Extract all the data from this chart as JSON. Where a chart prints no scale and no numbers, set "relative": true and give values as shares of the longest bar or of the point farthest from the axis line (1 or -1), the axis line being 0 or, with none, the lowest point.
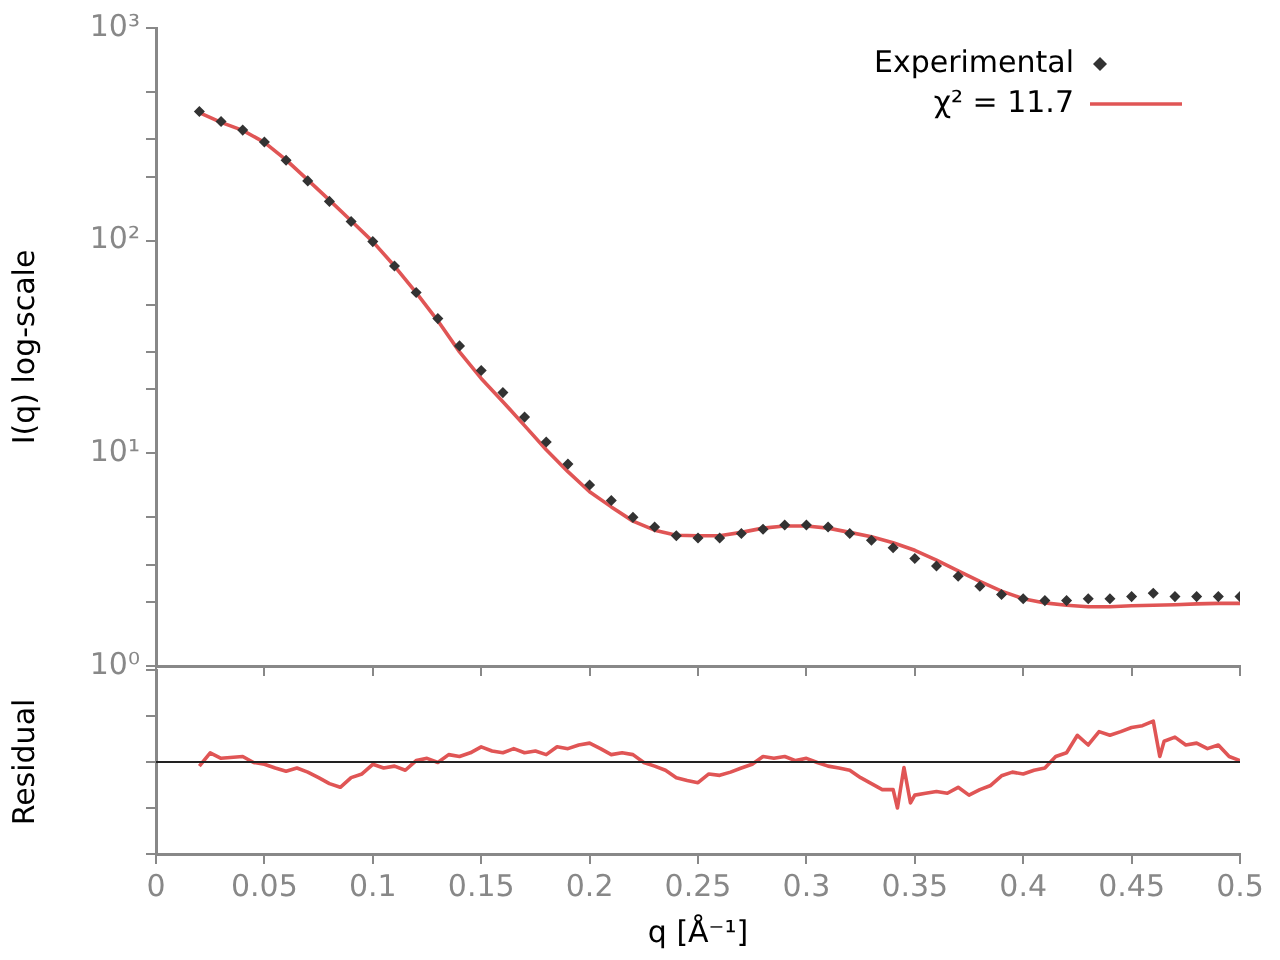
{
  "chart_data": [
    {
      "type": "scatter",
      "ylabel": "I(q) log-scale",
      "log": "y",
      "grid": false,
      "legend": "top right",
      "tick_labels": "y",
      "xlim": [
        0,
        0.5
      ],
      "xticks": [
        0,
        0.05,
        0.1,
        0.15,
        0.2,
        0.25,
        0.3,
        0.35,
        0.4,
        0.45,
        0.5
      ],
      "ylim": [
        1,
        1000
      ],
      "yticks": [
        {
          "value": 1,
          "label": "10⁰"
        },
        {
          "value": 2,
          "label": null
        },
        {
          "value": 3,
          "label": null
        },
        {
          "value": 5,
          "label": null
        },
        {
          "value": 10,
          "label": "10¹"
        },
        {
          "value": 20,
          "label": null
        },
        {
          "value": 30,
          "label": null
        },
        {
          "value": 50,
          "label": null
        },
        {
          "value": 100,
          "label": "10²"
        },
        {
          "value": 200,
          "label": null
        },
        {
          "value": 300,
          "label": null
        },
        {
          "value": 500,
          "label": null
        },
        {
          "value": 1000,
          "label": "10³"
        }
      ],
      "x": [
        0.02,
        0.03,
        0.04,
        0.05,
        0.06,
        0.07,
        0.08,
        0.09,
        0.1,
        0.11,
        0.12,
        0.13,
        0.14,
        0.15,
        0.16,
        0.17,
        0.18,
        0.19,
        0.2,
        0.21,
        0.22,
        0.23,
        0.24,
        0.25,
        0.26,
        0.27,
        0.28,
        0.29,
        0.3,
        0.31,
        0.32,
        0.33,
        0.34,
        0.35,
        0.36,
        0.37,
        0.38,
        0.39,
        0.4,
        0.41,
        0.42,
        0.43,
        0.44,
        0.45,
        0.46,
        0.47,
        0.48,
        0.49,
        0.5
      ],
      "series": [
        {
          "name": "Experimental",
          "type": "scatter",
          "marker": "diamond",
          "color": "#333333",
          "values": [
            405,
            363,
            331,
            291,
            239,
            191,
            153,
            123,
            99,
            76,
            57,
            43,
            32,
            24.5,
            19.3,
            14.8,
            11.3,
            8.9,
            7.1,
            6.0,
            5.0,
            4.5,
            4.1,
            4.0,
            4.0,
            4.2,
            4.4,
            4.6,
            4.6,
            4.5,
            4.2,
            3.9,
            3.6,
            3.2,
            2.95,
            2.64,
            2.37,
            2.17,
            2.07,
            2.03,
            2.03,
            2.07,
            2.07,
            2.12,
            2.2,
            2.12,
            2.12,
            2.12,
            2.12
          ]
        },
        {
          "name": "χ² = 11.7",
          "type": "line",
          "marker": "none",
          "line_style": "solid",
          "color": "#e05555",
          "values": [
            400,
            360,
            330,
            290,
            240,
            193,
            155,
            124,
            99,
            76,
            57,
            42,
            30,
            22.5,
            17.5,
            13.5,
            10.4,
            8.2,
            6.6,
            5.6,
            4.8,
            4.35,
            4.12,
            4.1,
            4.1,
            4.25,
            4.45,
            4.55,
            4.55,
            4.45,
            4.25,
            4.05,
            3.8,
            3.5,
            3.15,
            2.8,
            2.5,
            2.25,
            2.07,
            1.98,
            1.93,
            1.9,
            1.9,
            1.92,
            1.93,
            1.94,
            1.96,
            1.97,
            1.97
          ]
        }
      ]
    },
    {
      "type": "line",
      "ylabel": "Residual",
      "xlabel": "q [Å⁻¹]",
      "relative": true,
      "grid": false,
      "legend": false,
      "marker": "none",
      "line_style": "solid",
      "xlim": [
        0,
        0.5
      ],
      "xticks": [
        0,
        0.05,
        0.1,
        0.15,
        0.2,
        0.25,
        0.3,
        0.35,
        0.4,
        0.45,
        0.5
      ],
      "ref_lines": [
        {
          "axis": "y",
          "value": 0,
          "color": "#222222"
        }
      ],
      "x": [
        0.02,
        0.025,
        0.03,
        0.04,
        0.045,
        0.05,
        0.055,
        0.06,
        0.065,
        0.07,
        0.075,
        0.08,
        0.085,
        0.09,
        0.095,
        0.1,
        0.105,
        0.11,
        0.115,
        0.12,
        0.125,
        0.13,
        0.135,
        0.14,
        0.145,
        0.15,
        0.155,
        0.16,
        0.165,
        0.17,
        0.175,
        0.18,
        0.185,
        0.19,
        0.195,
        0.2,
        0.205,
        0.21,
        0.215,
        0.22,
        0.225,
        0.23,
        0.235,
        0.24,
        0.245,
        0.25,
        0.255,
        0.26,
        0.265,
        0.27,
        0.275,
        0.28,
        0.285,
        0.29,
        0.295,
        0.3,
        0.305,
        0.31,
        0.315,
        0.32,
        0.325,
        0.33,
        0.335,
        0.34,
        0.342,
        0.345,
        0.348,
        0.35,
        0.355,
        0.36,
        0.365,
        0.37,
        0.375,
        0.38,
        0.385,
        0.39,
        0.395,
        0.4,
        0.405,
        0.41,
        0.415,
        0.42,
        0.425,
        0.43,
        0.435,
        0.44,
        0.445,
        0.45,
        0.455,
        0.46,
        0.463,
        0.465,
        0.47,
        0.475,
        0.48,
        0.485,
        0.49,
        0.495,
        0.5
      ],
      "series": [
        {
          "color": "#e05555",
          "values": [
            -0.09,
            0.2,
            0.08,
            0.12,
            -0.01,
            -0.05,
            -0.13,
            -0.2,
            -0.13,
            -0.22,
            -0.34,
            -0.47,
            -0.55,
            -0.34,
            -0.26,
            -0.05,
            -0.13,
            -0.09,
            -0.18,
            0.03,
            0.08,
            -0.01,
            0.16,
            0.12,
            0.2,
            0.33,
            0.24,
            0.2,
            0.29,
            0.2,
            0.24,
            0.16,
            0.33,
            0.29,
            0.37,
            0.41,
            0.29,
            0.16,
            0.2,
            0.16,
            -0.01,
            -0.09,
            -0.18,
            -0.34,
            -0.4,
            -0.45,
            -0.26,
            -0.29,
            -0.22,
            -0.13,
            -0.05,
            0.12,
            0.08,
            0.12,
            0.03,
            0.08,
            -0.01,
            -0.09,
            -0.13,
            -0.18,
            -0.34,
            -0.47,
            -0.6,
            -0.6,
            -1,
            -0.12,
            -0.89,
            -0.72,
            -0.68,
            -0.64,
            -0.68,
            -0.55,
            -0.72,
            -0.6,
            -0.51,
            -0.3,
            -0.22,
            -0.26,
            -0.18,
            -0.13,
            0.12,
            0.2,
            0.58,
            0.37,
            0.66,
            0.58,
            0.66,
            0.75,
            0.79,
            0.89,
            0.12,
            0.45,
            0.54,
            0.37,
            0.41,
            0.29,
            0.37,
            0.12,
            0.03
          ]
        }
      ]
    }
  ]
}
